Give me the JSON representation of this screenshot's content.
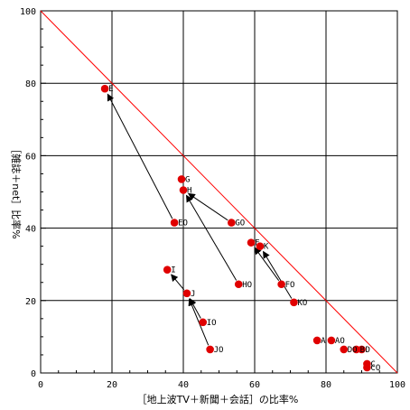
{
  "chart_data": {
    "type": "scatter",
    "xlabel": "［地上波TV＋新聞＋会話］の比率%",
    "ylabel": "［雑誌＋net］比率%",
    "xlim": [
      0,
      100
    ],
    "ylim": [
      0,
      100
    ],
    "xticks": [
      0,
      20,
      40,
      60,
      80,
      100
    ],
    "yticks": [
      0,
      20,
      40,
      60,
      80,
      100
    ],
    "grid": true,
    "reference_line": {
      "from": [
        0,
        100
      ],
      "to": [
        100,
        0
      ],
      "color": "#ff0000"
    },
    "point_color": "#e00000",
    "points": [
      {
        "label": "E",
        "x": 18,
        "y": 78.5
      },
      {
        "label": "G",
        "x": 39.5,
        "y": 53.5
      },
      {
        "label": "H",
        "x": 40,
        "y": 50.5
      },
      {
        "label": "EO",
        "x": 37.5,
        "y": 41.5
      },
      {
        "label": "GO",
        "x": 53.5,
        "y": 41.5
      },
      {
        "label": "F",
        "x": 59,
        "y": 36
      },
      {
        "label": "K",
        "x": 61.5,
        "y": 35
      },
      {
        "label": "I",
        "x": 35.5,
        "y": 28.5
      },
      {
        "label": "J",
        "x": 41,
        "y": 22
      },
      {
        "label": "HO",
        "x": 55.5,
        "y": 24.5
      },
      {
        "label": "FO",
        "x": 67.5,
        "y": 24.5
      },
      {
        "label": "KO",
        "x": 71,
        "y": 19.5
      },
      {
        "label": "IO",
        "x": 45.5,
        "y": 14
      },
      {
        "label": "JO",
        "x": 47.5,
        "y": 6.5
      },
      {
        "label": "A",
        "x": 77.5,
        "y": 9
      },
      {
        "label": "AO",
        "x": 81.5,
        "y": 9
      },
      {
        "label": "DO",
        "x": 85,
        "y": 6.5
      },
      {
        "label": "B",
        "x": 88.5,
        "y": 6.5
      },
      {
        "label": "D",
        "x": 90,
        "y": 6.5
      },
      {
        "label": "C",
        "x": 91.5,
        "y": 2.5
      },
      {
        "label": "CO",
        "x": 91.5,
        "y": 1.5
      }
    ],
    "arrows": [
      {
        "from": "EO",
        "to": "E"
      },
      {
        "from": "HO",
        "to": "H"
      },
      {
        "from": "GO",
        "to": "H"
      },
      {
        "from": "FO",
        "to": "F"
      },
      {
        "from": "KO",
        "to": "K"
      },
      {
        "from": "J",
        "to": "I"
      },
      {
        "from": "IO",
        "to": "J"
      },
      {
        "from": "JO",
        "to": "J"
      }
    ]
  }
}
